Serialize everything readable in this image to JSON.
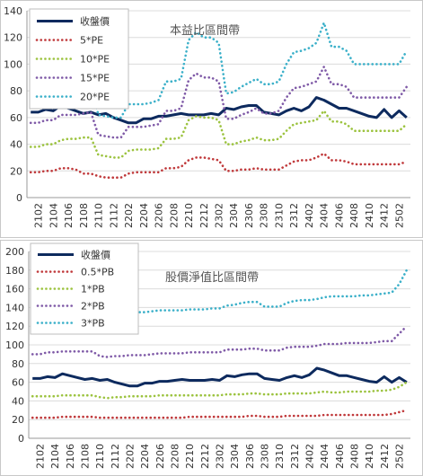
{
  "colors": {
    "close": "#0d2a5e",
    "x05": "#c0393b",
    "x1": "#9cc33f",
    "x2": "#7f5aa7",
    "x3": "#3bb0c9",
    "frame": "#c8c8c8",
    "grid": "#dcdcdc"
  },
  "chart_data": [
    {
      "type": "line",
      "title": "本益比區間帶",
      "ylim": [
        0,
        140
      ],
      "yticks": [
        0,
        20,
        40,
        60,
        80,
        100,
        120,
        140
      ],
      "grid": "horizontal",
      "legend_position": "top-left",
      "x": [
        "2101",
        "2102",
        "2103",
        "2104",
        "2105",
        "2106",
        "2107",
        "2108",
        "2109",
        "2110",
        "2111",
        "2112",
        "2201",
        "2202",
        "2203",
        "2204",
        "2205",
        "2206",
        "2207",
        "2208",
        "2209",
        "2210",
        "2211",
        "2212",
        "2301",
        "2302",
        "2303",
        "2304",
        "2305",
        "2306",
        "2307",
        "2308",
        "2309",
        "2310",
        "2311",
        "2312",
        "2401",
        "2402",
        "2403",
        "2404",
        "2405",
        "2406",
        "2407",
        "2408",
        "2409",
        "2410",
        "2411",
        "2412",
        "2501",
        "2502",
        "2503"
      ],
      "xtick_labels": [
        "2102",
        "2104",
        "2106",
        "2108",
        "2110",
        "2112",
        "2202",
        "2204",
        "2206",
        "2208",
        "2210",
        "2212",
        "2302",
        "2304",
        "2306",
        "2308",
        "2310",
        "2312",
        "2402",
        "2404",
        "2406",
        "2408",
        "2410",
        "2412",
        "2502"
      ],
      "series": [
        {
          "name": "收盤價",
          "style": "solid",
          "color_key": "close",
          "values": [
            64,
            64,
            66,
            65,
            69,
            67,
            65,
            63,
            64,
            62,
            63,
            60,
            58,
            56,
            56,
            59,
            59,
            61,
            61,
            62,
            63,
            62,
            62,
            62,
            63,
            62,
            67,
            66,
            68,
            69,
            69,
            64,
            63,
            62,
            65,
            67,
            65,
            68,
            75,
            73,
            70,
            67,
            67,
            65,
            63,
            61,
            60,
            66,
            60,
            65,
            60
          ]
        },
        {
          "name": "5*PE",
          "style": "dotted",
          "color_key": "x05",
          "values": [
            19,
            19,
            20,
            20,
            22,
            22,
            21,
            18,
            18,
            16,
            15,
            15,
            15,
            18,
            19,
            19,
            19,
            19,
            22,
            22,
            23,
            28,
            30,
            30,
            29,
            28,
            20,
            20,
            21,
            21,
            22,
            21,
            21,
            21,
            24,
            27,
            28,
            28,
            30,
            33,
            28,
            28,
            27,
            25,
            25,
            25,
            25,
            25,
            25,
            25,
            27
          ]
        },
        {
          "name": "10*PE",
          "style": "dotted",
          "color_key": "x1",
          "values": [
            38,
            38,
            40,
            40,
            43,
            44,
            44,
            45,
            45,
            32,
            31,
            30,
            30,
            35,
            36,
            36,
            36,
            37,
            44,
            44,
            45,
            58,
            61,
            60,
            60,
            58,
            40,
            40,
            42,
            43,
            45,
            43,
            43,
            44,
            50,
            55,
            56,
            57,
            58,
            65,
            57,
            57,
            55,
            50,
            50,
            50,
            50,
            50,
            50,
            50,
            55
          ]
        },
        {
          "name": "15*PE",
          "style": "dotted",
          "color_key": "x2",
          "values": [
            56,
            56,
            58,
            58,
            62,
            62,
            62,
            63,
            64,
            47,
            46,
            45,
            45,
            53,
            53,
            53,
            54,
            55,
            65,
            65,
            67,
            88,
            93,
            90,
            90,
            87,
            59,
            59,
            62,
            64,
            67,
            63,
            63,
            65,
            75,
            82,
            83,
            85,
            87,
            98,
            85,
            85,
            83,
            75,
            75,
            75,
            75,
            75,
            75,
            75,
            83
          ]
        },
        {
          "name": "20*PE",
          "style": "dotted",
          "color_key": "x3",
          "values": [
            76,
            76,
            79,
            79,
            84,
            84,
            85,
            84,
            85,
            62,
            61,
            60,
            60,
            70,
            70,
            70,
            71,
            73,
            87,
            87,
            89,
            118,
            124,
            120,
            120,
            116,
            78,
            79,
            83,
            86,
            89,
            85,
            85,
            87,
            100,
            109,
            110,
            112,
            116,
            131,
            113,
            113,
            110,
            100,
            100,
            100,
            100,
            100,
            100,
            100,
            110
          ]
        }
      ]
    },
    {
      "type": "line",
      "title": "股價淨值比區間帶",
      "ylim": [
        0,
        200
      ],
      "yticks": [
        0,
        20,
        40,
        60,
        80,
        100,
        120,
        140,
        160,
        180,
        200
      ],
      "grid": "horizontal",
      "legend_position": "top-left",
      "x": [
        "2101",
        "2102",
        "2103",
        "2104",
        "2105",
        "2106",
        "2107",
        "2108",
        "2109",
        "2110",
        "2111",
        "2112",
        "2201",
        "2202",
        "2203",
        "2204",
        "2205",
        "2206",
        "2207",
        "2208",
        "2209",
        "2210",
        "2211",
        "2212",
        "2301",
        "2302",
        "2303",
        "2304",
        "2305",
        "2306",
        "2307",
        "2308",
        "2309",
        "2310",
        "2311",
        "2312",
        "2401",
        "2402",
        "2403",
        "2404",
        "2405",
        "2406",
        "2407",
        "2408",
        "2409",
        "2410",
        "2411",
        "2412",
        "2501",
        "2502",
        "2503"
      ],
      "xtick_labels": [
        "2102",
        "2104",
        "2106",
        "2108",
        "2110",
        "2112",
        "2202",
        "2204",
        "2206",
        "2208",
        "2210",
        "2212",
        "2302",
        "2304",
        "2306",
        "2308",
        "2310",
        "2312",
        "2402",
        "2404",
        "2406",
        "2408",
        "2410",
        "2412",
        "2502"
      ],
      "series": [
        {
          "name": "收盤價",
          "style": "solid",
          "color_key": "close",
          "values": [
            64,
            64,
            66,
            65,
            69,
            67,
            65,
            63,
            64,
            62,
            63,
            60,
            58,
            56,
            56,
            59,
            59,
            61,
            61,
            62,
            63,
            62,
            62,
            62,
            63,
            62,
            67,
            66,
            68,
            69,
            69,
            64,
            63,
            62,
            65,
            67,
            65,
            68,
            75,
            73,
            70,
            67,
            67,
            65,
            63,
            61,
            60,
            66,
            60,
            65,
            60
          ]
        },
        {
          "name": "0.5*PB",
          "style": "dotted",
          "color_key": "x05",
          "values": [
            22,
            22,
            22,
            22,
            23,
            23,
            23,
            23,
            23,
            22,
            22,
            22,
            22,
            22,
            22,
            22,
            22,
            22,
            22,
            22,
            22,
            23,
            23,
            23,
            23,
            23,
            23,
            23,
            23,
            24,
            24,
            23,
            23,
            23,
            24,
            24,
            24,
            24,
            24,
            25,
            25,
            25,
            25,
            25,
            25,
            25,
            25,
            25,
            26,
            28,
            30
          ]
        },
        {
          "name": "1*PB",
          "style": "dotted",
          "color_key": "x1",
          "values": [
            45,
            45,
            45,
            45,
            46,
            46,
            46,
            46,
            46,
            44,
            43,
            44,
            44,
            45,
            45,
            45,
            45,
            46,
            46,
            46,
            46,
            46,
            46,
            46,
            46,
            46,
            47,
            47,
            47,
            48,
            48,
            47,
            47,
            47,
            48,
            48,
            48,
            48,
            49,
            50,
            49,
            49,
            50,
            50,
            50,
            50,
            51,
            51,
            52,
            55,
            60
          ]
        },
        {
          "name": "2*PB",
          "style": "dotted",
          "color_key": "x2",
          "values": [
            90,
            90,
            92,
            92,
            93,
            93,
            93,
            93,
            93,
            88,
            87,
            88,
            88,
            89,
            89,
            89,
            90,
            91,
            91,
            91,
            91,
            92,
            92,
            92,
            92,
            92,
            95,
            95,
            95,
            96,
            96,
            94,
            94,
            94,
            97,
            98,
            98,
            98,
            99,
            101,
            101,
            101,
            102,
            102,
            102,
            102,
            103,
            104,
            104,
            112,
            120
          ]
        },
        {
          "name": "3*PB",
          "style": "dotted",
          "color_key": "x3",
          "values": [
            136,
            136,
            137,
            137,
            139,
            139,
            139,
            139,
            139,
            133,
            132,
            133,
            133,
            135,
            135,
            135,
            136,
            137,
            137,
            137,
            137,
            138,
            138,
            138,
            139,
            139,
            142,
            143,
            145,
            146,
            146,
            141,
            141,
            141,
            145,
            147,
            148,
            148,
            149,
            151,
            152,
            152,
            152,
            152,
            153,
            153,
            154,
            155,
            156,
            165,
            180
          ]
        }
      ]
    }
  ]
}
